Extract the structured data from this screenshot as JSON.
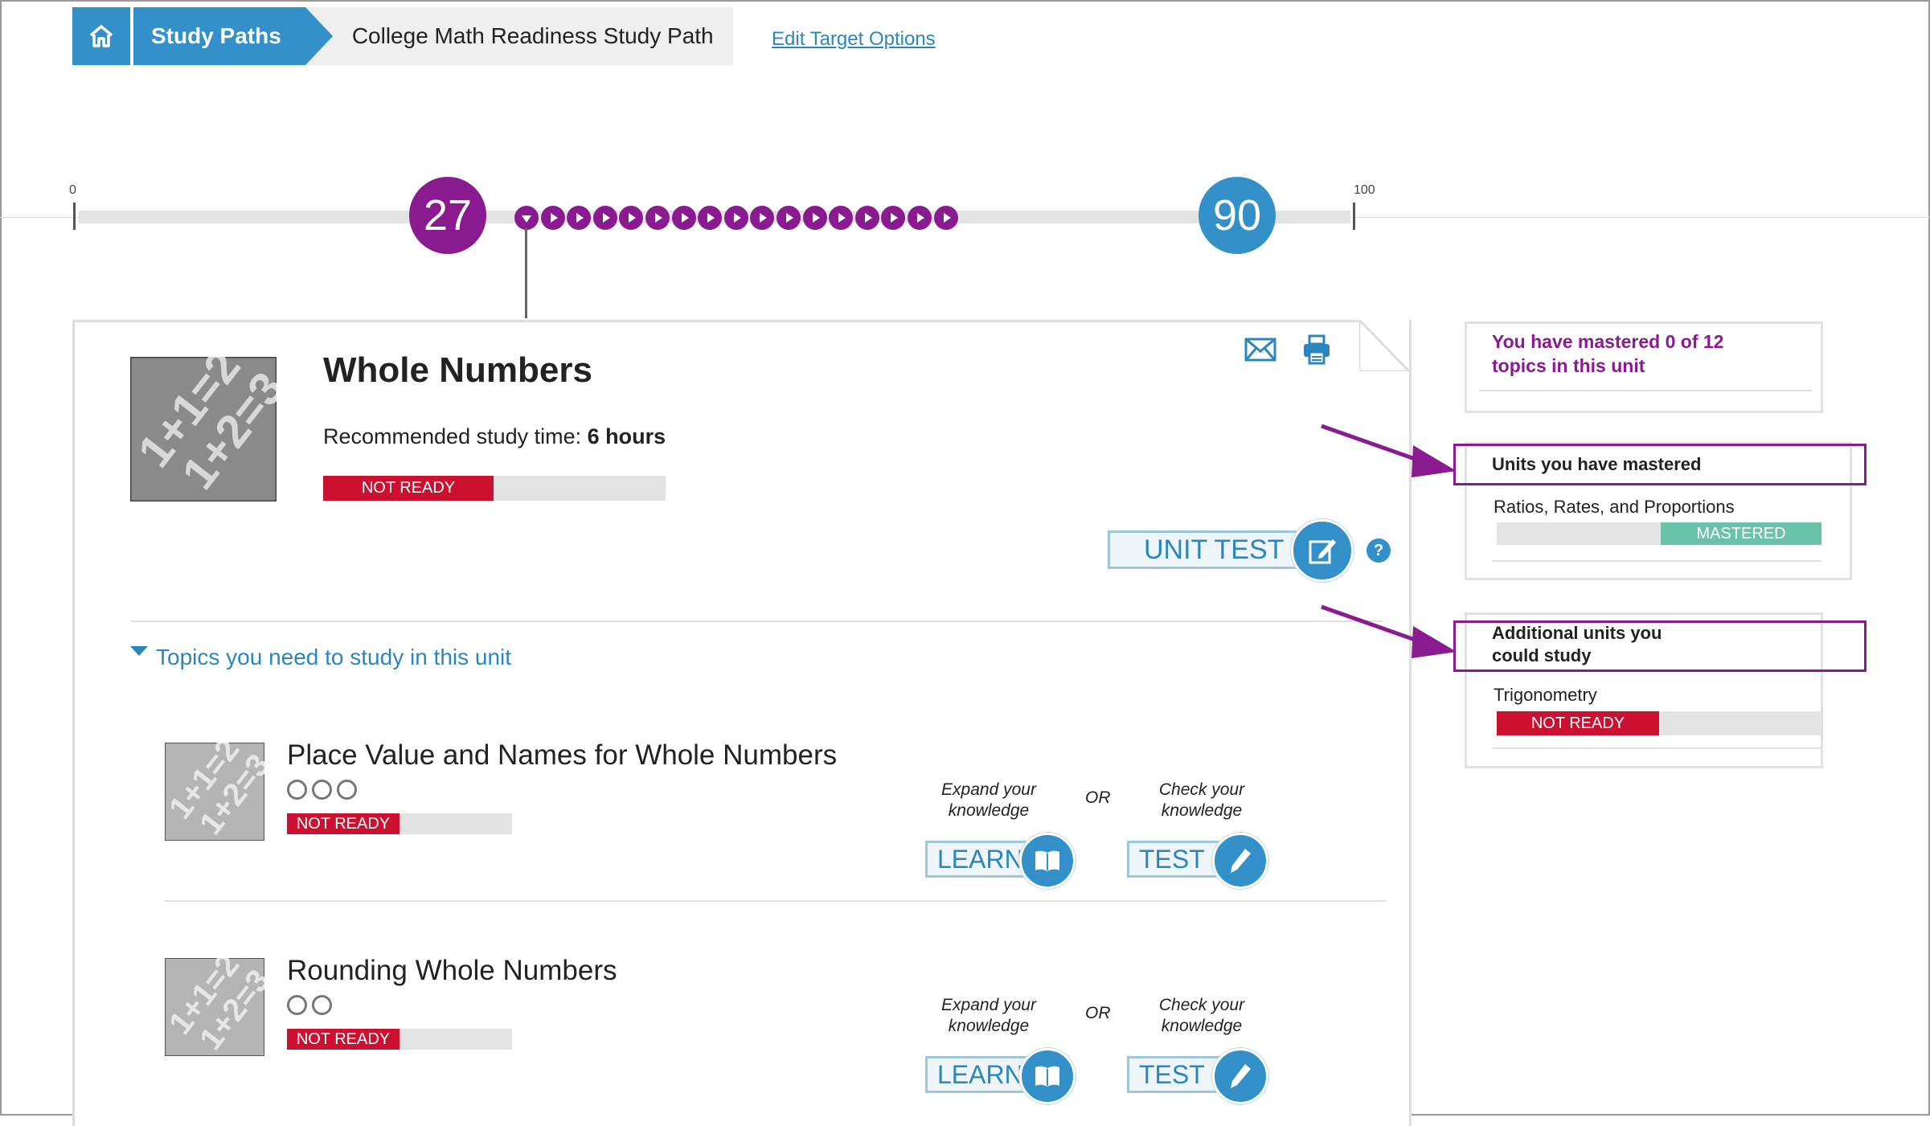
{
  "breadcrumb": {
    "home_icon": "home-icon",
    "study_paths": "Study Paths",
    "current_path": "College Math Readiness Study Path"
  },
  "edit_target": "Edit Target Options",
  "score_bar": {
    "min_label": "0",
    "max_label": "100",
    "current_score": "27",
    "target_score": "90",
    "steps_between": 17
  },
  "unit": {
    "title": "Whole Numbers",
    "recommended_label": "Recommended study time: ",
    "recommended_value": "6 hours",
    "status": "NOT READY",
    "unit_test_label": "UNIT TEST",
    "help_label": "?",
    "topics_toggle": "Topics you need to study in this unit",
    "topics": [
      {
        "title": "Place Value and Names for Whole Numbers",
        "circles": 3,
        "status": "NOT READY",
        "learn_hint": "Expand your knowledge",
        "learn_hint_1": "Expand your",
        "learn_hint_2": "knowledge",
        "or_label": "OR",
        "test_hint_1": "Check your",
        "test_hint_2": "knowledge",
        "learn_label": "LEARN",
        "test_label": "TEST"
      },
      {
        "title": "Rounding Whole Numbers",
        "circles": 2,
        "status": "NOT READY",
        "learn_hint_1": "Expand your",
        "learn_hint_2": "knowledge",
        "or_label": "OR",
        "test_hint_1": "Check your",
        "test_hint_2": "knowledge",
        "learn_label": "LEARN",
        "test_label": "TEST"
      }
    ]
  },
  "sidebar": {
    "mastered_count": "You have mastered 0 of 12 topics in this unit",
    "mastered_heading": "Units you have mastered",
    "mastered_units": [
      {
        "name": "Ratios, Rates, and Proportions",
        "status": "MASTERED"
      }
    ],
    "additional_heading_1": "Additional units you",
    "additional_heading_2": "could study",
    "additional_units": [
      {
        "name": "Trigonometry",
        "status": "NOT READY"
      }
    ]
  },
  "colors": {
    "accent_blue": "#3390c8",
    "accent_purple": "#8a1a8f",
    "not_ready_red": "#cc1130",
    "mastered_green": "#6ac3a8"
  }
}
